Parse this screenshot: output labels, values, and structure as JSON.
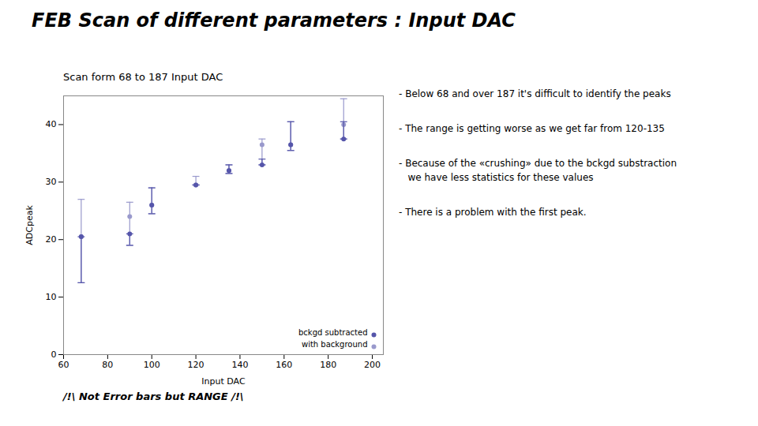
{
  "chart_data": {
    "type": "scatter",
    "title": "FEB Scan of different parameters : Input DAC",
    "subtitle": "Scan form 68 to 187 Input DAC",
    "xlabel": "Input DAC",
    "ylabel": "ADCpeak",
    "caption": "/!\\ Not Error bars but RANGE /!\\",
    "annotations": [
      "- Below 68 and over 187 it's difficult to identify the peaks",
      "- The range is getting worse as we get far from 120-135",
      "- Because of the «crushing» due to the bckgd substraction\n   we have less statistics for these values",
      "- There is a problem with the first peak."
    ],
    "xlim": [
      60,
      205
    ],
    "ylim": [
      0,
      45
    ],
    "xticks": [
      60,
      80,
      100,
      120,
      140,
      160,
      180,
      200
    ],
    "yticks": [
      0,
      10,
      20,
      30,
      40
    ],
    "legend": "lower right",
    "marker": "circle",
    "x": [
      68,
      90,
      100,
      120,
      135,
      150,
      163,
      187
    ],
    "series": [
      {
        "name": "bckgd subtracted",
        "color": "#5555aa",
        "values": [
          20.5,
          21.0,
          26.0,
          29.5,
          32.0,
          33.0,
          36.5,
          37.5
        ],
        "low": [
          12.5,
          19.0,
          24.5,
          29.5,
          31.5,
          33.0,
          35.5,
          37.5
        ],
        "high": [
          20.5,
          21.0,
          29.0,
          29.5,
          33.0,
          34.0,
          40.5,
          40.5
        ]
      },
      {
        "name": "with background",
        "color": "#9999cc",
        "values": [
          20.5,
          24.0,
          26.0,
          29.5,
          32.0,
          36.5,
          36.5,
          40.0
        ],
        "low": [
          12.5,
          19.0,
          24.5,
          29.5,
          31.5,
          33.0,
          35.5,
          37.5
        ],
        "high": [
          27.0,
          26.5,
          29.0,
          31.0,
          33.0,
          37.5,
          40.5,
          44.5
        ]
      }
    ]
  }
}
